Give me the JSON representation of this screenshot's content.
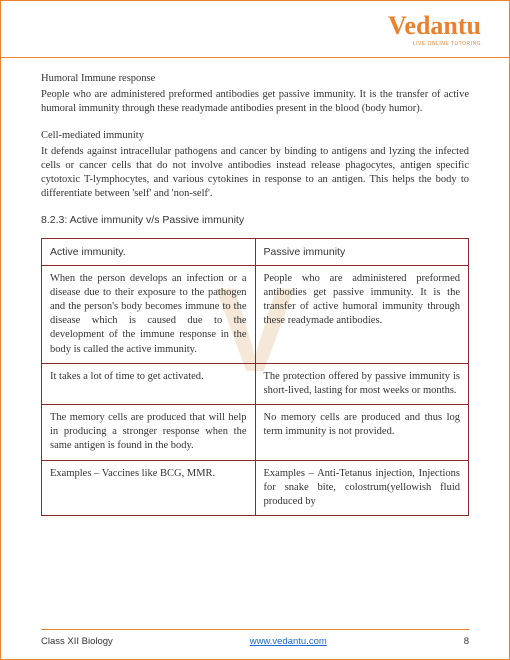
{
  "brand": {
    "name": "Vedantu",
    "tagline": "LIVE ONLINE TUTORING"
  },
  "watermark": "V",
  "section1": {
    "title": "Humoral Immune response",
    "body": "People who are administered preformed antibodies get passive immunity. It is the transfer of active humoral immunity through these readymade antibodies present in the blood (body humor)."
  },
  "section2": {
    "title": "Cell-mediated immunity",
    "body": "It defends against intracellular pathogens and cancer by binding to antigens and lyzing the infected cells or cancer cells that do not involve antibodies instead release phagocytes, antigen specific cytotoxic T-lymphocytes, and various cytokines in response to an antigen. This helps the body to differentiate between 'self' and 'non-self'."
  },
  "tableHeading": "8.2.3: Active immunity v/s Passive immunity",
  "table": {
    "columns": [
      "Active immunity.",
      "Passive immunity"
    ],
    "rows": [
      [
        "When the person develops an infection or a disease due to their exposure to the pathogen and the person's body becomes immune to the disease which is caused due to the development of the immune response in the body is called the active immunity.",
        "People who are administered preformed antibodies get passive immunity. It is the transfer of active humoral immunity through these readymade antibodies."
      ],
      [
        "It takes a lot of time to get activated.",
        " The protection offered by passive immunity is short-lived, lasting for most weeks or months."
      ],
      [
        "The memory cells are produced that will help in producing a stronger response when the same antigen is found in the body.",
        "No memory cells are produced and thus log term immunity is not provided."
      ],
      [
        "Examples – Vaccines like BCG, MMR.",
        "Examples – Anti-Tetanus injection, Injections for snake bite, colostrum(yellowish fluid produced by"
      ]
    ]
  },
  "footer": {
    "left": "Class XII Biology",
    "link": "www.vedantu.com",
    "page": "8"
  }
}
